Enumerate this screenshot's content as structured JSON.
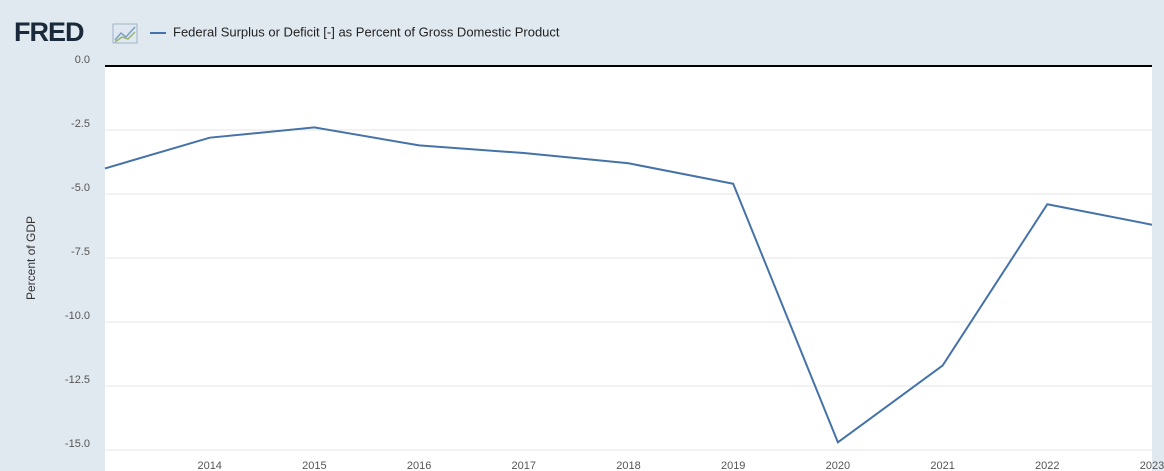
{
  "chart_data": {
    "type": "line",
    "logo": "FRED",
    "y_label": "Percent of GDP",
    "x": [
      2013,
      2014,
      2015,
      2016,
      2017,
      2018,
      2019,
      2020,
      2021,
      2022,
      2023
    ],
    "series": [
      {
        "name": "Federal Surplus or Deficit [-] as Percent of Gross Domestic Product",
        "color": "#4572a7",
        "values": [
          -4.0,
          -2.8,
          -2.4,
          -3.1,
          -3.4,
          -3.8,
          -4.6,
          -14.7,
          -11.7,
          -5.4,
          -6.2
        ]
      }
    ],
    "xlim": [
      2013,
      2023
    ],
    "xticks": [
      2014,
      2015,
      2016,
      2017,
      2018,
      2019,
      2020,
      2021,
      2022,
      2023
    ],
    "ylim": [
      -15,
      0
    ],
    "yticks": [
      {
        "value": 0,
        "label": "0.0"
      },
      -2.5,
      {
        "value": -5,
        "label": "-5.0"
      },
      -7.5,
      {
        "value": -10,
        "label": "-10.0"
      },
      -12.5,
      {
        "value": -15,
        "label": "-15.0"
      }
    ],
    "grid": true,
    "zero_line_color": "#000000"
  }
}
